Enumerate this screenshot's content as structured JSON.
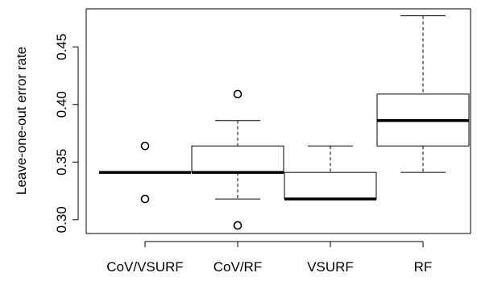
{
  "chart_data": {
    "type": "boxplot",
    "title": "",
    "xlabel": "",
    "ylabel": "Leave-one-out error rate",
    "ylim": [
      0.288,
      0.483
    ],
    "yticks": [
      0.3,
      0.35,
      0.4,
      0.45
    ],
    "ytick_labels": [
      "0.30",
      "0.35",
      "0.40",
      "0.45"
    ],
    "grid": false,
    "categories": [
      "CoV/VSURF",
      "CoV/RF",
      "VSURF",
      "RF"
    ],
    "boxes": [
      {
        "label": "CoV/VSURF",
        "whisker_low": 0.341,
        "q1": 0.341,
        "median": 0.341,
        "q3": 0.341,
        "whisker_high": 0.341,
        "outliers": [
          0.364,
          0.318
        ]
      },
      {
        "label": "CoV/RF",
        "whisker_low": 0.318,
        "q1": 0.341,
        "median": 0.341,
        "q3": 0.364,
        "whisker_high": 0.386,
        "outliers": [
          0.409,
          0.295
        ]
      },
      {
        "label": "VSURF",
        "whisker_low": 0.318,
        "q1": 0.318,
        "median": 0.318,
        "q3": 0.341,
        "whisker_high": 0.364,
        "outliers": []
      },
      {
        "label": "RF",
        "whisker_low": 0.341,
        "q1": 0.364,
        "median": 0.386,
        "q3": 0.409,
        "whisker_high": 0.477,
        "outliers": []
      }
    ]
  }
}
